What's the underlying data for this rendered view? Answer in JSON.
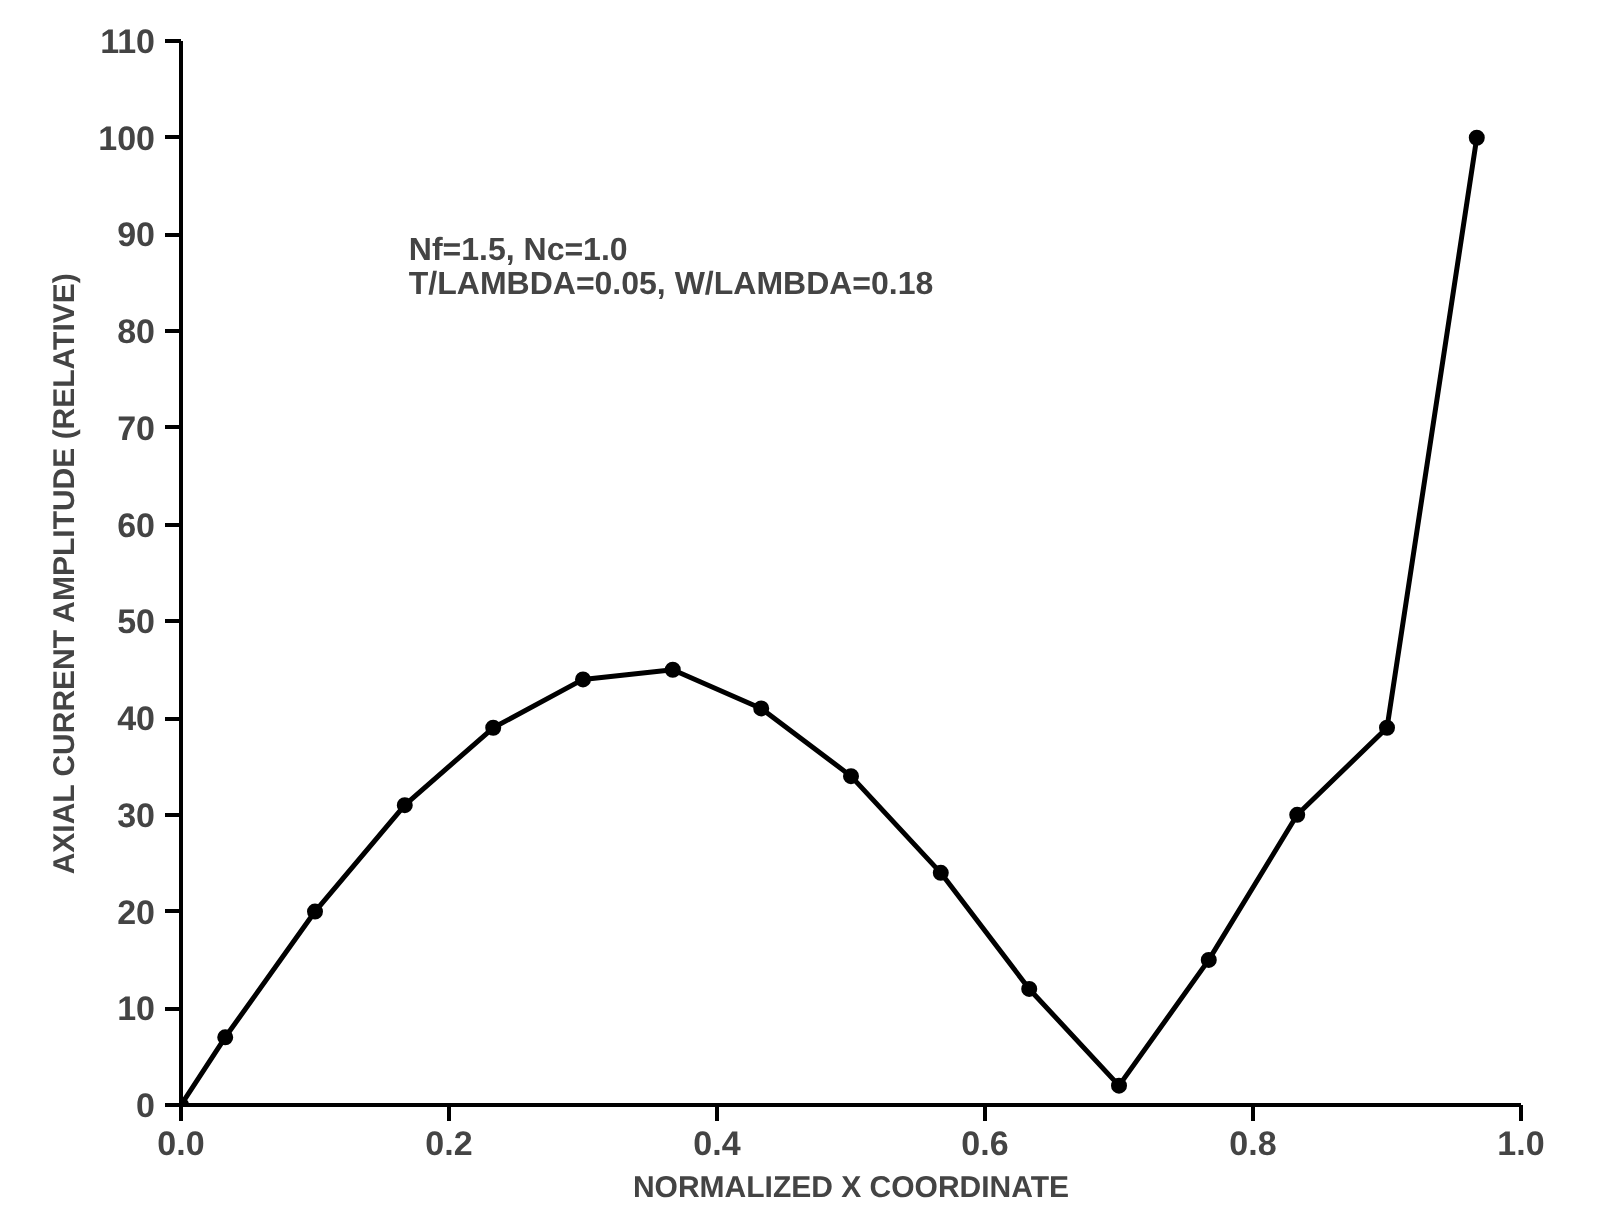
{
  "chart_data": {
    "type": "line",
    "xlabel": "NORMALIZED X COORDINATE",
    "ylabel": "AXIAL CURRENT AMPLITUDE (RELATIVE)",
    "annotations": [
      "Nf=1.5, Nc=1.0\nT/LAMBDA=0.05, W/LAMBDA=0.18"
    ],
    "x": [
      0,
      0.033,
      0.1,
      0.167,
      0.233,
      0.3,
      0.367,
      0.433,
      0.5,
      0.567,
      0.633,
      0.7,
      0.767,
      0.833,
      0.9,
      0.967
    ],
    "series": [
      {
        "color": "#000000",
        "values": [
          0,
          7,
          20,
          31,
          39,
          44,
          45,
          41,
          34,
          24,
          12,
          2,
          15,
          30,
          39,
          100
        ]
      }
    ],
    "xlim": [
      0,
      1.0
    ],
    "ylim": [
      0,
      110
    ],
    "xticks": [
      {
        "value": 0,
        "label": "0.0"
      },
      0.2,
      0.4,
      0.6,
      0.8,
      {
        "value": 1.0,
        "label": "1.0"
      }
    ],
    "yticks": [
      0,
      10,
      20,
      30,
      40,
      50,
      60,
      70,
      80,
      90,
      100,
      110
    ],
    "marker": "circle",
    "line_style": "solid"
  }
}
